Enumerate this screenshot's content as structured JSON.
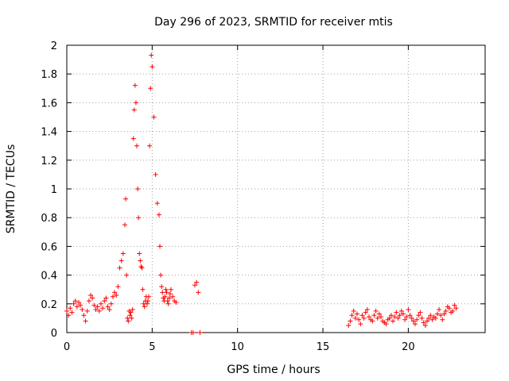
{
  "chart_data": {
    "type": "scatter",
    "title": "Day 296 of 2023, SRMTID for receiver mtis",
    "xlabel": "GPS time / hours",
    "ylabel": "SRMTID / TECUs",
    "xlim": [
      0,
      24.5
    ],
    "ylim": [
      0,
      2
    ],
    "xticks": [
      0,
      5,
      10,
      15,
      20
    ],
    "xtick_labels": [
      "0",
      "5",
      "10",
      "15",
      "20"
    ],
    "yticks": [
      0,
      0.2,
      0.4,
      0.6,
      0.8,
      1,
      1.2,
      1.4,
      1.6,
      1.8,
      2
    ],
    "ytick_labels": [
      "0",
      "0.2",
      "0.4",
      "0.6",
      "0.8",
      "1",
      "1.2",
      "1.4",
      "1.6",
      "1.8",
      "2"
    ],
    "grid": true,
    "marker": "+",
    "color": "#ff0000",
    "series": [
      {
        "name": "SRMTID",
        "x": [
          0.0,
          0.1,
          0.2,
          0.3,
          0.4,
          0.5,
          0.6,
          0.7,
          0.8,
          0.9,
          1.0,
          1.1,
          1.2,
          1.3,
          1.4,
          1.5,
          1.6,
          1.7,
          1.8,
          1.9,
          2.0,
          2.1,
          2.2,
          2.3,
          2.4,
          2.5,
          2.6,
          2.7,
          2.8,
          2.9,
          3.0,
          3.1,
          3.2,
          3.3,
          3.4,
          3.45,
          3.5,
          3.55,
          3.6,
          3.65,
          3.7,
          3.75,
          3.8,
          3.85,
          3.9,
          3.95,
          4.0,
          4.05,
          4.1,
          4.15,
          4.2,
          4.25,
          4.3,
          4.35,
          4.4,
          4.45,
          4.5,
          4.55,
          4.6,
          4.65,
          4.7,
          4.75,
          4.8,
          4.85,
          4.9,
          4.95,
          5.0,
          5.1,
          5.2,
          5.3,
          5.4,
          5.45,
          5.5,
          5.55,
          5.6,
          5.65,
          5.7,
          5.75,
          5.8,
          5.85,
          5.9,
          5.95,
          6.0,
          6.05,
          6.1,
          6.2,
          6.3,
          6.4,
          7.3,
          7.4,
          7.5,
          7.6,
          7.7,
          7.8,
          16.5,
          16.6,
          16.7,
          16.8,
          16.9,
          17.0,
          17.1,
          17.2,
          17.3,
          17.4,
          17.5,
          17.6,
          17.7,
          17.8,
          17.9,
          18.0,
          18.1,
          18.2,
          18.3,
          18.4,
          18.5,
          18.6,
          18.7,
          18.8,
          18.9,
          19.0,
          19.1,
          19.2,
          19.3,
          19.4,
          19.5,
          19.6,
          19.7,
          19.8,
          19.9,
          20.0,
          20.1,
          20.2,
          20.3,
          20.4,
          20.5,
          20.6,
          20.7,
          20.8,
          20.9,
          21.0,
          21.1,
          21.2,
          21.3,
          21.4,
          21.5,
          21.6,
          21.7,
          21.8,
          21.9,
          22.0,
          22.1,
          22.2,
          22.3,
          22.4,
          22.5,
          22.6,
          22.7,
          22.8
        ],
        "y": [
          0.15,
          0.12,
          0.17,
          0.14,
          0.2,
          0.22,
          0.18,
          0.21,
          0.19,
          0.16,
          0.12,
          0.08,
          0.15,
          0.22,
          0.26,
          0.24,
          0.19,
          0.16,
          0.18,
          0.15,
          0.2,
          0.17,
          0.22,
          0.24,
          0.18,
          0.16,
          0.2,
          0.25,
          0.28,
          0.26,
          0.32,
          0.45,
          0.5,
          0.55,
          0.75,
          0.93,
          0.4,
          0.1,
          0.08,
          0.15,
          0.12,
          0.14,
          0.1,
          0.16,
          1.35,
          1.55,
          1.72,
          1.6,
          1.3,
          1.0,
          0.8,
          0.55,
          0.5,
          0.46,
          0.45,
          0.3,
          0.2,
          0.18,
          0.22,
          0.25,
          0.2,
          0.22,
          0.25,
          1.3,
          1.7,
          1.93,
          1.85,
          1.5,
          1.1,
          0.9,
          0.82,
          0.6,
          0.4,
          0.32,
          0.28,
          0.24,
          0.22,
          0.25,
          0.3,
          0.28,
          0.22,
          0.2,
          0.24,
          0.27,
          0.3,
          0.25,
          0.22,
          0.21,
          0.0,
          0.0,
          0.33,
          0.35,
          0.28,
          0.0,
          0.05,
          0.08,
          0.12,
          0.15,
          0.1,
          0.13,
          0.09,
          0.06,
          0.12,
          0.1,
          0.14,
          0.16,
          0.11,
          0.09,
          0.08,
          0.12,
          0.15,
          0.1,
          0.13,
          0.11,
          0.08,
          0.07,
          0.06,
          0.09,
          0.1,
          0.12,
          0.08,
          0.11,
          0.14,
          0.1,
          0.12,
          0.15,
          0.13,
          0.09,
          0.11,
          0.16,
          0.12,
          0.1,
          0.08,
          0.06,
          0.09,
          0.12,
          0.14,
          0.1,
          0.07,
          0.05,
          0.08,
          0.1,
          0.12,
          0.09,
          0.11,
          0.1,
          0.13,
          0.16,
          0.12,
          0.09,
          0.13,
          0.15,
          0.18,
          0.17,
          0.14,
          0.15,
          0.19,
          0.17
        ]
      }
    ]
  }
}
